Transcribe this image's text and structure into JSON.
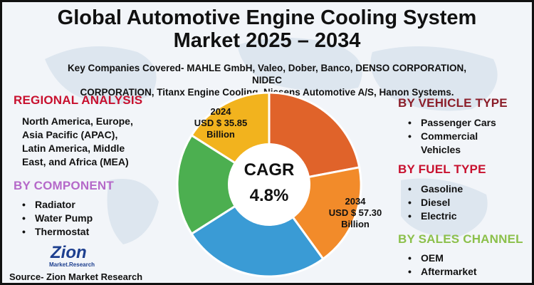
{
  "title_line1": "Global Automotive Engine Cooling System",
  "title_line2": "Market 2025 – 2034",
  "companies_line1": "Key Companies Covered- MAHLE GmbH, Valeo, Dober, Banco, DENSO CORPORATION, NIDEC",
  "companies_line2": "CORPORATION, Titanx Engine Cooling, Nissens Automotive A/S, Hanon Systems.",
  "regional": {
    "heading": "REGIONAL ANALYSIS",
    "lines": [
      "North America, Europe,",
      "Asia Pacific (APAC),",
      "Latin America, Middle",
      "East, and Africa (MEA)"
    ]
  },
  "component": {
    "heading": "BY COMPONENT",
    "items": [
      "Radiator",
      "Water Pump",
      "Thermostat"
    ]
  },
  "vehicle_type": {
    "heading": "BY VEHICLE TYPE",
    "items": [
      "Passenger Cars",
      "Commercial",
      "Vehicles"
    ]
  },
  "fuel_type": {
    "heading": "BY FUEL TYPE",
    "items": [
      "Gasoline",
      "Diesel",
      "Electric"
    ]
  },
  "sales_channel": {
    "heading": "BY SALES CHANNEL",
    "items": [
      "OEM",
      "Aftermarket"
    ]
  },
  "value_2024": {
    "year": "2024",
    "amount": "USD $ 35.85",
    "unit": "Billion"
  },
  "value_2034": {
    "year": "2034",
    "amount": "USD $ 57.30",
    "unit": "Billion"
  },
  "cagr": {
    "label": "CAGR",
    "value": "4.8%"
  },
  "logo": {
    "main": "Zion",
    "sub": "Market.Research"
  },
  "source": "Source- Zion Market Research",
  "colors": {
    "red_heading": "#c8102e",
    "purple_heading": "#b569c9",
    "maroon_heading": "#8b1e2a",
    "green_heading": "#8cc04b",
    "pie": [
      "#e0632a",
      "#f28b2a",
      "#3a9bd5",
      "#4caf50",
      "#f2b31e"
    ]
  },
  "chart_data": {
    "type": "pie",
    "values": [
      22,
      18,
      26,
      18,
      16
    ]
  }
}
